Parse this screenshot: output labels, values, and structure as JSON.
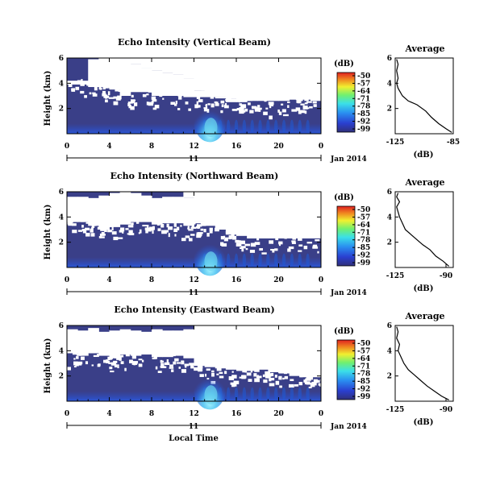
{
  "chart_data": [
    {
      "type": "heatmap",
      "title": "Echo Intensity (Vertical Beam)",
      "ylabel": "Height (km)",
      "x_ticks": [
        "0",
        "4",
        "8",
        "12",
        "16",
        "20",
        "0"
      ],
      "y_ticks": [
        "2",
        "4",
        "6"
      ],
      "date_day": "11",
      "date_month": "Jan 2014",
      "xlim": [
        0,
        24
      ],
      "ylim": [
        0,
        6
      ],
      "colorbar": {
        "label": "(dB)",
        "ticks": [
          "-50",
          "-57",
          "-64",
          "-71",
          "-78",
          "-85",
          "-92",
          "-99"
        ]
      },
      "coverage_top_km": [
        6.0,
        6.0,
        6.0,
        6.0,
        6.0,
        5.9,
        5.5,
        5.2,
        5.0,
        4.8,
        4.7,
        4.4,
        3.4,
        3.0,
        2.9,
        2.8,
        2.5,
        2.6,
        2.6,
        2.6,
        2.6,
        2.7,
        2.7,
        2.6
      ],
      "gap_bottom_km": [
        3.9,
        3.9,
        3.7,
        3.7,
        3.5,
        3.0,
        3.3,
        3.3,
        3.0,
        3.0,
        3.0,
        2.9,
        2.9,
        2.9,
        2.8,
        2.5,
        2.6,
        2.6,
        2.6,
        2.6,
        2.6,
        2.7,
        2.7,
        2.6
      ],
      "gap_top_km": [
        4.2,
        4.2,
        5.9,
        6.0,
        6.0,
        5.9,
        5.5,
        5.2,
        5.0,
        4.8,
        4.7,
        4.4,
        3.4,
        3.0,
        2.9,
        2.8,
        2.5,
        2.6,
        2.6,
        2.6,
        2.6,
        2.7,
        2.7,
        2.6
      ],
      "average": {
        "title": "Average",
        "xlabel": "(dB)",
        "x_ticks": [
          "-125",
          "-85"
        ],
        "xlim": [
          -125,
          -85
        ],
        "y_ticks": [
          "2",
          "4",
          "6"
        ],
        "ylim": [
          0,
          6
        ],
        "profile": [
          [
            -86,
            0.1
          ],
          [
            -90,
            0.4
          ],
          [
            -95,
            0.8
          ],
          [
            -100,
            1.3
          ],
          [
            -104,
            1.8
          ],
          [
            -110,
            2.3
          ],
          [
            -116,
            2.6
          ],
          [
            -120,
            3.0
          ],
          [
            -123,
            3.6
          ],
          [
            -124,
            4.0
          ],
          [
            -123,
            4.4
          ],
          [
            -124,
            5.0
          ],
          [
            -123,
            5.5
          ],
          [
            -124,
            5.9
          ]
        ]
      }
    },
    {
      "type": "heatmap",
      "title": "Echo Intensity (Northward Beam)",
      "ylabel": "Height (km)",
      "x_ticks": [
        "0",
        "4",
        "8",
        "12",
        "16",
        "20",
        "0"
      ],
      "y_ticks": [
        "2",
        "4",
        "6"
      ],
      "date_day": "11",
      "date_month": "Jan 2014",
      "xlim": [
        0,
        24
      ],
      "ylim": [
        0,
        6
      ],
      "colorbar": {
        "label": "(dB)",
        "ticks": [
          "-50",
          "-57",
          "-64",
          "-71",
          "-78",
          "-85",
          "-92",
          "-99"
        ]
      },
      "coverage_top_km": [
        6.0,
        6.0,
        6.0,
        6.0,
        6.0,
        6.0,
        6.0,
        6.0,
        6.0,
        6.0,
        6.0,
        5.5,
        3.7,
        3.3,
        3.0,
        2.6,
        2.5,
        2.3,
        2.3,
        2.3,
        2.3,
        2.3,
        2.3,
        2.3
      ],
      "gap_bottom_km": [
        3.6,
        3.6,
        3.3,
        3.0,
        3.2,
        3.4,
        3.6,
        3.6,
        3.4,
        3.5,
        3.5,
        3.3,
        3.5,
        3.3,
        3.0,
        2.6,
        2.5,
        2.3,
        2.3,
        2.3,
        2.3,
        2.3,
        2.3,
        2.3
      ],
      "gap_top_km": [
        5.6,
        5.6,
        5.5,
        5.7,
        5.9,
        6.0,
        5.9,
        5.7,
        5.5,
        5.6,
        5.6,
        5.5,
        3.7,
        3.3,
        3.0,
        2.6,
        2.5,
        2.3,
        2.3,
        2.3,
        2.3,
        2.3,
        2.3,
        2.3
      ],
      "average": {
        "title": "Average",
        "xlabel": "(dB)",
        "x_ticks": [
          "-125",
          "-90"
        ],
        "xlim": [
          -125,
          -85
        ],
        "y_ticks": [
          "2",
          "4",
          "6"
        ],
        "ylim": [
          0,
          6
        ],
        "profile": [
          [
            -88,
            0.1
          ],
          [
            -92,
            0.5
          ],
          [
            -97,
            0.9
          ],
          [
            -101,
            1.4
          ],
          [
            -106,
            1.8
          ],
          [
            -110,
            2.2
          ],
          [
            -114,
            2.6
          ],
          [
            -118,
            3.0
          ],
          [
            -120,
            3.5
          ],
          [
            -122,
            4.0
          ],
          [
            -123,
            4.4
          ],
          [
            -124,
            4.8
          ],
          [
            -122,
            5.2
          ],
          [
            -124,
            5.6
          ],
          [
            -123,
            5.9
          ]
        ]
      }
    },
    {
      "type": "heatmap",
      "title": "Echo Intensity (Eastward Beam)",
      "ylabel": "Height (km)",
      "x_ticks": [
        "0",
        "4",
        "8",
        "12",
        "16",
        "20",
        "0"
      ],
      "y_ticks": [
        "2",
        "4",
        "6"
      ],
      "date_day": "11",
      "date_month": "Jan 2014",
      "xlim": [
        0,
        24
      ],
      "ylim": [
        0,
        6
      ],
      "colorbar": {
        "label": "(dB)",
        "ticks": [
          "-50",
          "-57",
          "-64",
          "-71",
          "-78",
          "-85",
          "-92",
          "-99"
        ]
      },
      "coverage_top_km": [
        6.0,
        6.0,
        6.0,
        6.0,
        6.0,
        6.0,
        6.0,
        6.0,
        6.0,
        6.0,
        6.0,
        6.0,
        2.8,
        2.7,
        2.6,
        2.5,
        2.4,
        2.4,
        2.5,
        2.3,
        2.2,
        2.0,
        1.9,
        1.9
      ],
      "gap_bottom_km": [
        3.8,
        3.6,
        3.8,
        3.6,
        3.4,
        3.7,
        3.6,
        3.7,
        3.5,
        3.5,
        3.6,
        3.4,
        2.8,
        2.7,
        2.6,
        2.5,
        2.4,
        2.4,
        2.5,
        2.3,
        2.2,
        2.0,
        1.9,
        1.9
      ],
      "gap_top_km": [
        5.7,
        5.6,
        5.8,
        5.5,
        5.6,
        5.7,
        5.6,
        5.5,
        5.7,
        5.6,
        5.6,
        5.7,
        2.8,
        2.7,
        2.6,
        2.5,
        2.4,
        2.4,
        2.5,
        2.3,
        2.2,
        2.0,
        1.9,
        1.9
      ],
      "average": {
        "title": "Average",
        "xlabel": "(dB)",
        "x_ticks": [
          "-125",
          "-90"
        ],
        "xlim": [
          -125,
          -85
        ],
        "y_ticks": [
          "2",
          "4",
          "6"
        ],
        "ylim": [
          0,
          6
        ],
        "profile": [
          [
            -88,
            0.1
          ],
          [
            -93,
            0.4
          ],
          [
            -98,
            0.8
          ],
          [
            -103,
            1.2
          ],
          [
            -108,
            1.7
          ],
          [
            -112,
            2.1
          ],
          [
            -116,
            2.5
          ],
          [
            -119,
            3.0
          ],
          [
            -121,
            3.5
          ],
          [
            -123,
            4.0
          ],
          [
            -122,
            4.5
          ],
          [
            -124,
            5.0
          ],
          [
            -123,
            5.5
          ],
          [
            -124,
            5.9
          ]
        ]
      }
    }
  ],
  "footer": {
    "xlabel": "Local Time"
  },
  "colors": {
    "background_echo": "#3a3f88",
    "no_data": "#ffffff",
    "enhanced_echo": "#1f5ad6",
    "peak_echo": "#6cd6f0"
  }
}
